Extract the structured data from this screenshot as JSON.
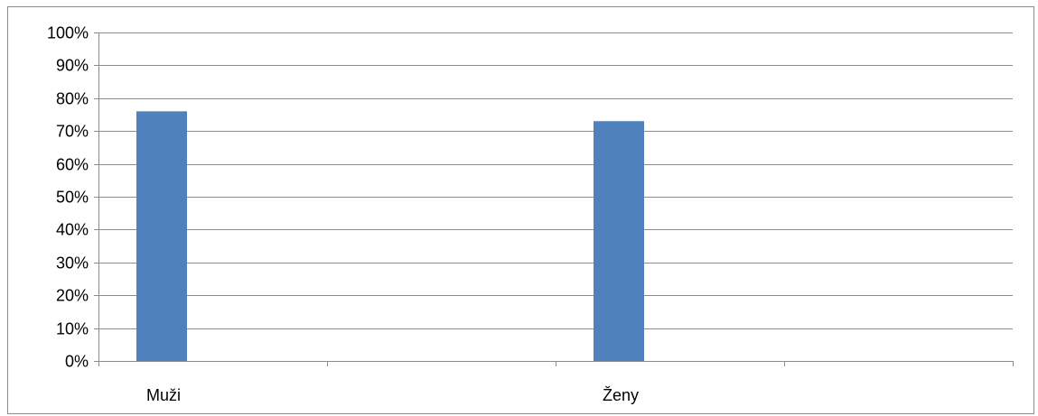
{
  "chart_data": {
    "type": "bar",
    "title": "",
    "xlabel": "",
    "ylabel": "",
    "categories": [
      "Muži",
      "Ženy"
    ],
    "series": [
      {
        "values": [
          0.76,
          0.73
        ],
        "color": "#4f81bd"
      }
    ],
    "ylim": [
      0,
      1
    ],
    "yticks": [
      0,
      0.1,
      0.2,
      0.3,
      0.4,
      0.5,
      0.6,
      0.7,
      0.8,
      0.9,
      1.0
    ],
    "ytick_labels": [
      "0%",
      "10%",
      "20%",
      "30%",
      "40%",
      "50%",
      "60%",
      "70%",
      "80%",
      "90%",
      "100%"
    ],
    "grid": true,
    "legend": "none",
    "colors": {
      "bar": "#4f81bd",
      "grid": "#8c8c8c",
      "frame": "#8c8c8c"
    }
  }
}
